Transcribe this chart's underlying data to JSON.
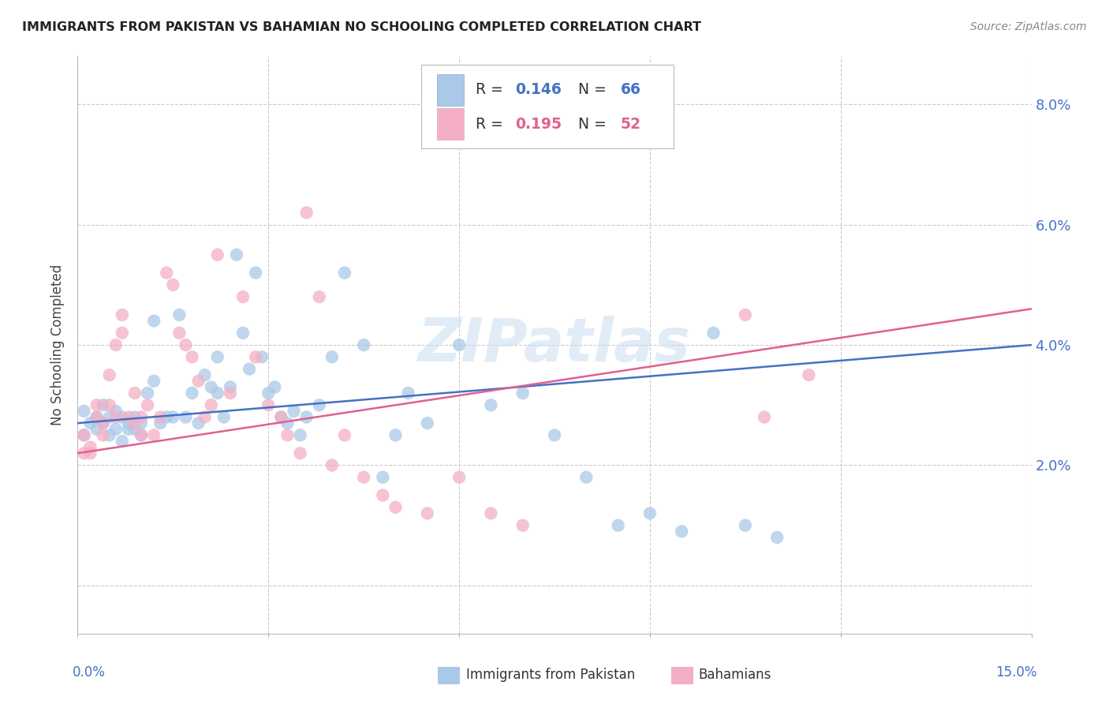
{
  "title": "IMMIGRANTS FROM PAKISTAN VS BAHAMIAN NO SCHOOLING COMPLETED CORRELATION CHART",
  "source": "Source: ZipAtlas.com",
  "ylabel": "No Schooling Completed",
  "yticks": [
    0.0,
    0.02,
    0.04,
    0.06,
    0.08
  ],
  "ytick_labels": [
    "",
    "2.0%",
    "4.0%",
    "6.0%",
    "8.0%"
  ],
  "xmin": 0.0,
  "xmax": 0.15,
  "ymin": -0.008,
  "ymax": 0.088,
  "legend_r1": "0.146",
  "legend_n1": "66",
  "legend_r2": "0.195",
  "legend_n2": "52",
  "color_blue": "#aac9e8",
  "color_pink": "#f4afc5",
  "color_blue_line": "#4472c4",
  "color_pink_line": "#e06090",
  "watermark": "ZIPatlas",
  "blue_line_y0": 0.027,
  "blue_line_y1": 0.04,
  "pink_line_y0": 0.022,
  "pink_line_y1": 0.046,
  "pak_x": [
    0.001,
    0.001,
    0.002,
    0.003,
    0.003,
    0.004,
    0.004,
    0.005,
    0.005,
    0.006,
    0.006,
    0.007,
    0.007,
    0.008,
    0.008,
    0.009,
    0.009,
    0.01,
    0.01,
    0.011,
    0.012,
    0.012,
    0.013,
    0.014,
    0.015,
    0.016,
    0.017,
    0.018,
    0.019,
    0.02,
    0.021,
    0.022,
    0.022,
    0.023,
    0.024,
    0.025,
    0.026,
    0.027,
    0.028,
    0.029,
    0.03,
    0.031,
    0.032,
    0.033,
    0.034,
    0.035,
    0.036,
    0.038,
    0.04,
    0.042,
    0.045,
    0.048,
    0.05,
    0.052,
    0.055,
    0.06,
    0.065,
    0.07,
    0.075,
    0.08,
    0.085,
    0.09,
    0.095,
    0.1,
    0.105,
    0.11
  ],
  "pak_y": [
    0.029,
    0.025,
    0.027,
    0.026,
    0.028,
    0.03,
    0.027,
    0.028,
    0.025,
    0.029,
    0.026,
    0.028,
    0.024,
    0.026,
    0.027,
    0.028,
    0.026,
    0.025,
    0.027,
    0.032,
    0.034,
    0.044,
    0.027,
    0.028,
    0.028,
    0.045,
    0.028,
    0.032,
    0.027,
    0.035,
    0.033,
    0.032,
    0.038,
    0.028,
    0.033,
    0.055,
    0.042,
    0.036,
    0.052,
    0.038,
    0.032,
    0.033,
    0.028,
    0.027,
    0.029,
    0.025,
    0.028,
    0.03,
    0.038,
    0.052,
    0.04,
    0.018,
    0.025,
    0.032,
    0.027,
    0.04,
    0.03,
    0.032,
    0.025,
    0.018,
    0.01,
    0.012,
    0.009,
    0.042,
    0.01,
    0.008
  ],
  "bah_x": [
    0.001,
    0.001,
    0.002,
    0.002,
    0.003,
    0.003,
    0.004,
    0.004,
    0.005,
    0.005,
    0.006,
    0.006,
    0.007,
    0.007,
    0.008,
    0.009,
    0.009,
    0.01,
    0.01,
    0.011,
    0.012,
    0.013,
    0.014,
    0.015,
    0.016,
    0.017,
    0.018,
    0.019,
    0.02,
    0.021,
    0.022,
    0.024,
    0.026,
    0.028,
    0.03,
    0.032,
    0.033,
    0.035,
    0.036,
    0.038,
    0.04,
    0.042,
    0.045,
    0.048,
    0.05,
    0.055,
    0.06,
    0.065,
    0.07,
    0.105,
    0.108,
    0.115
  ],
  "bah_y": [
    0.025,
    0.022,
    0.023,
    0.022,
    0.028,
    0.03,
    0.027,
    0.025,
    0.035,
    0.03,
    0.04,
    0.028,
    0.042,
    0.045,
    0.028,
    0.032,
    0.027,
    0.025,
    0.028,
    0.03,
    0.025,
    0.028,
    0.052,
    0.05,
    0.042,
    0.04,
    0.038,
    0.034,
    0.028,
    0.03,
    0.055,
    0.032,
    0.048,
    0.038,
    0.03,
    0.028,
    0.025,
    0.022,
    0.062,
    0.048,
    0.02,
    0.025,
    0.018,
    0.015,
    0.013,
    0.012,
    0.018,
    0.012,
    0.01,
    0.045,
    0.028,
    0.035
  ]
}
